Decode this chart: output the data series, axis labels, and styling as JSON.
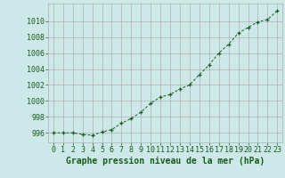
{
  "x": [
    0,
    1,
    2,
    3,
    4,
    5,
    6,
    7,
    8,
    9,
    10,
    11,
    12,
    13,
    14,
    15,
    16,
    17,
    18,
    19,
    20,
    21,
    22,
    23
  ],
  "y": [
    996.0,
    996.0,
    996.0,
    995.8,
    995.7,
    996.1,
    996.4,
    997.2,
    997.8,
    998.6,
    999.7,
    1000.5,
    1000.8,
    1001.5,
    1002.0,
    1003.3,
    1004.5,
    1006.0,
    1007.1,
    1008.5,
    1009.2,
    1009.9,
    1010.2,
    1011.3
  ],
  "line_color": "#1a5c1a",
  "marker": "+",
  "marker_color": "#1a5c1a",
  "bg_color": "#cce8e8",
  "grid_color": "#b0b0b0",
  "xlabel": "Graphe pression niveau de la mer (hPa)",
  "xlabel_color": "#1a5c1a",
  "ylabel_ticks": [
    996,
    998,
    1000,
    1002,
    1004,
    1006,
    1008,
    1010
  ],
  "ylim": [
    994.8,
    1012.2
  ],
  "xlim": [
    -0.5,
    23.5
  ],
  "xtick_labels": [
    "0",
    "1",
    "2",
    "3",
    "4",
    "5",
    "6",
    "7",
    "8",
    "9",
    "10",
    "11",
    "12",
    "13",
    "14",
    "15",
    "16",
    "17",
    "18",
    "19",
    "20",
    "21",
    "22",
    "23"
  ],
  "tick_color": "#1a5c1a",
  "font_size_xlabel": 7,
  "font_size_ticks": 6
}
